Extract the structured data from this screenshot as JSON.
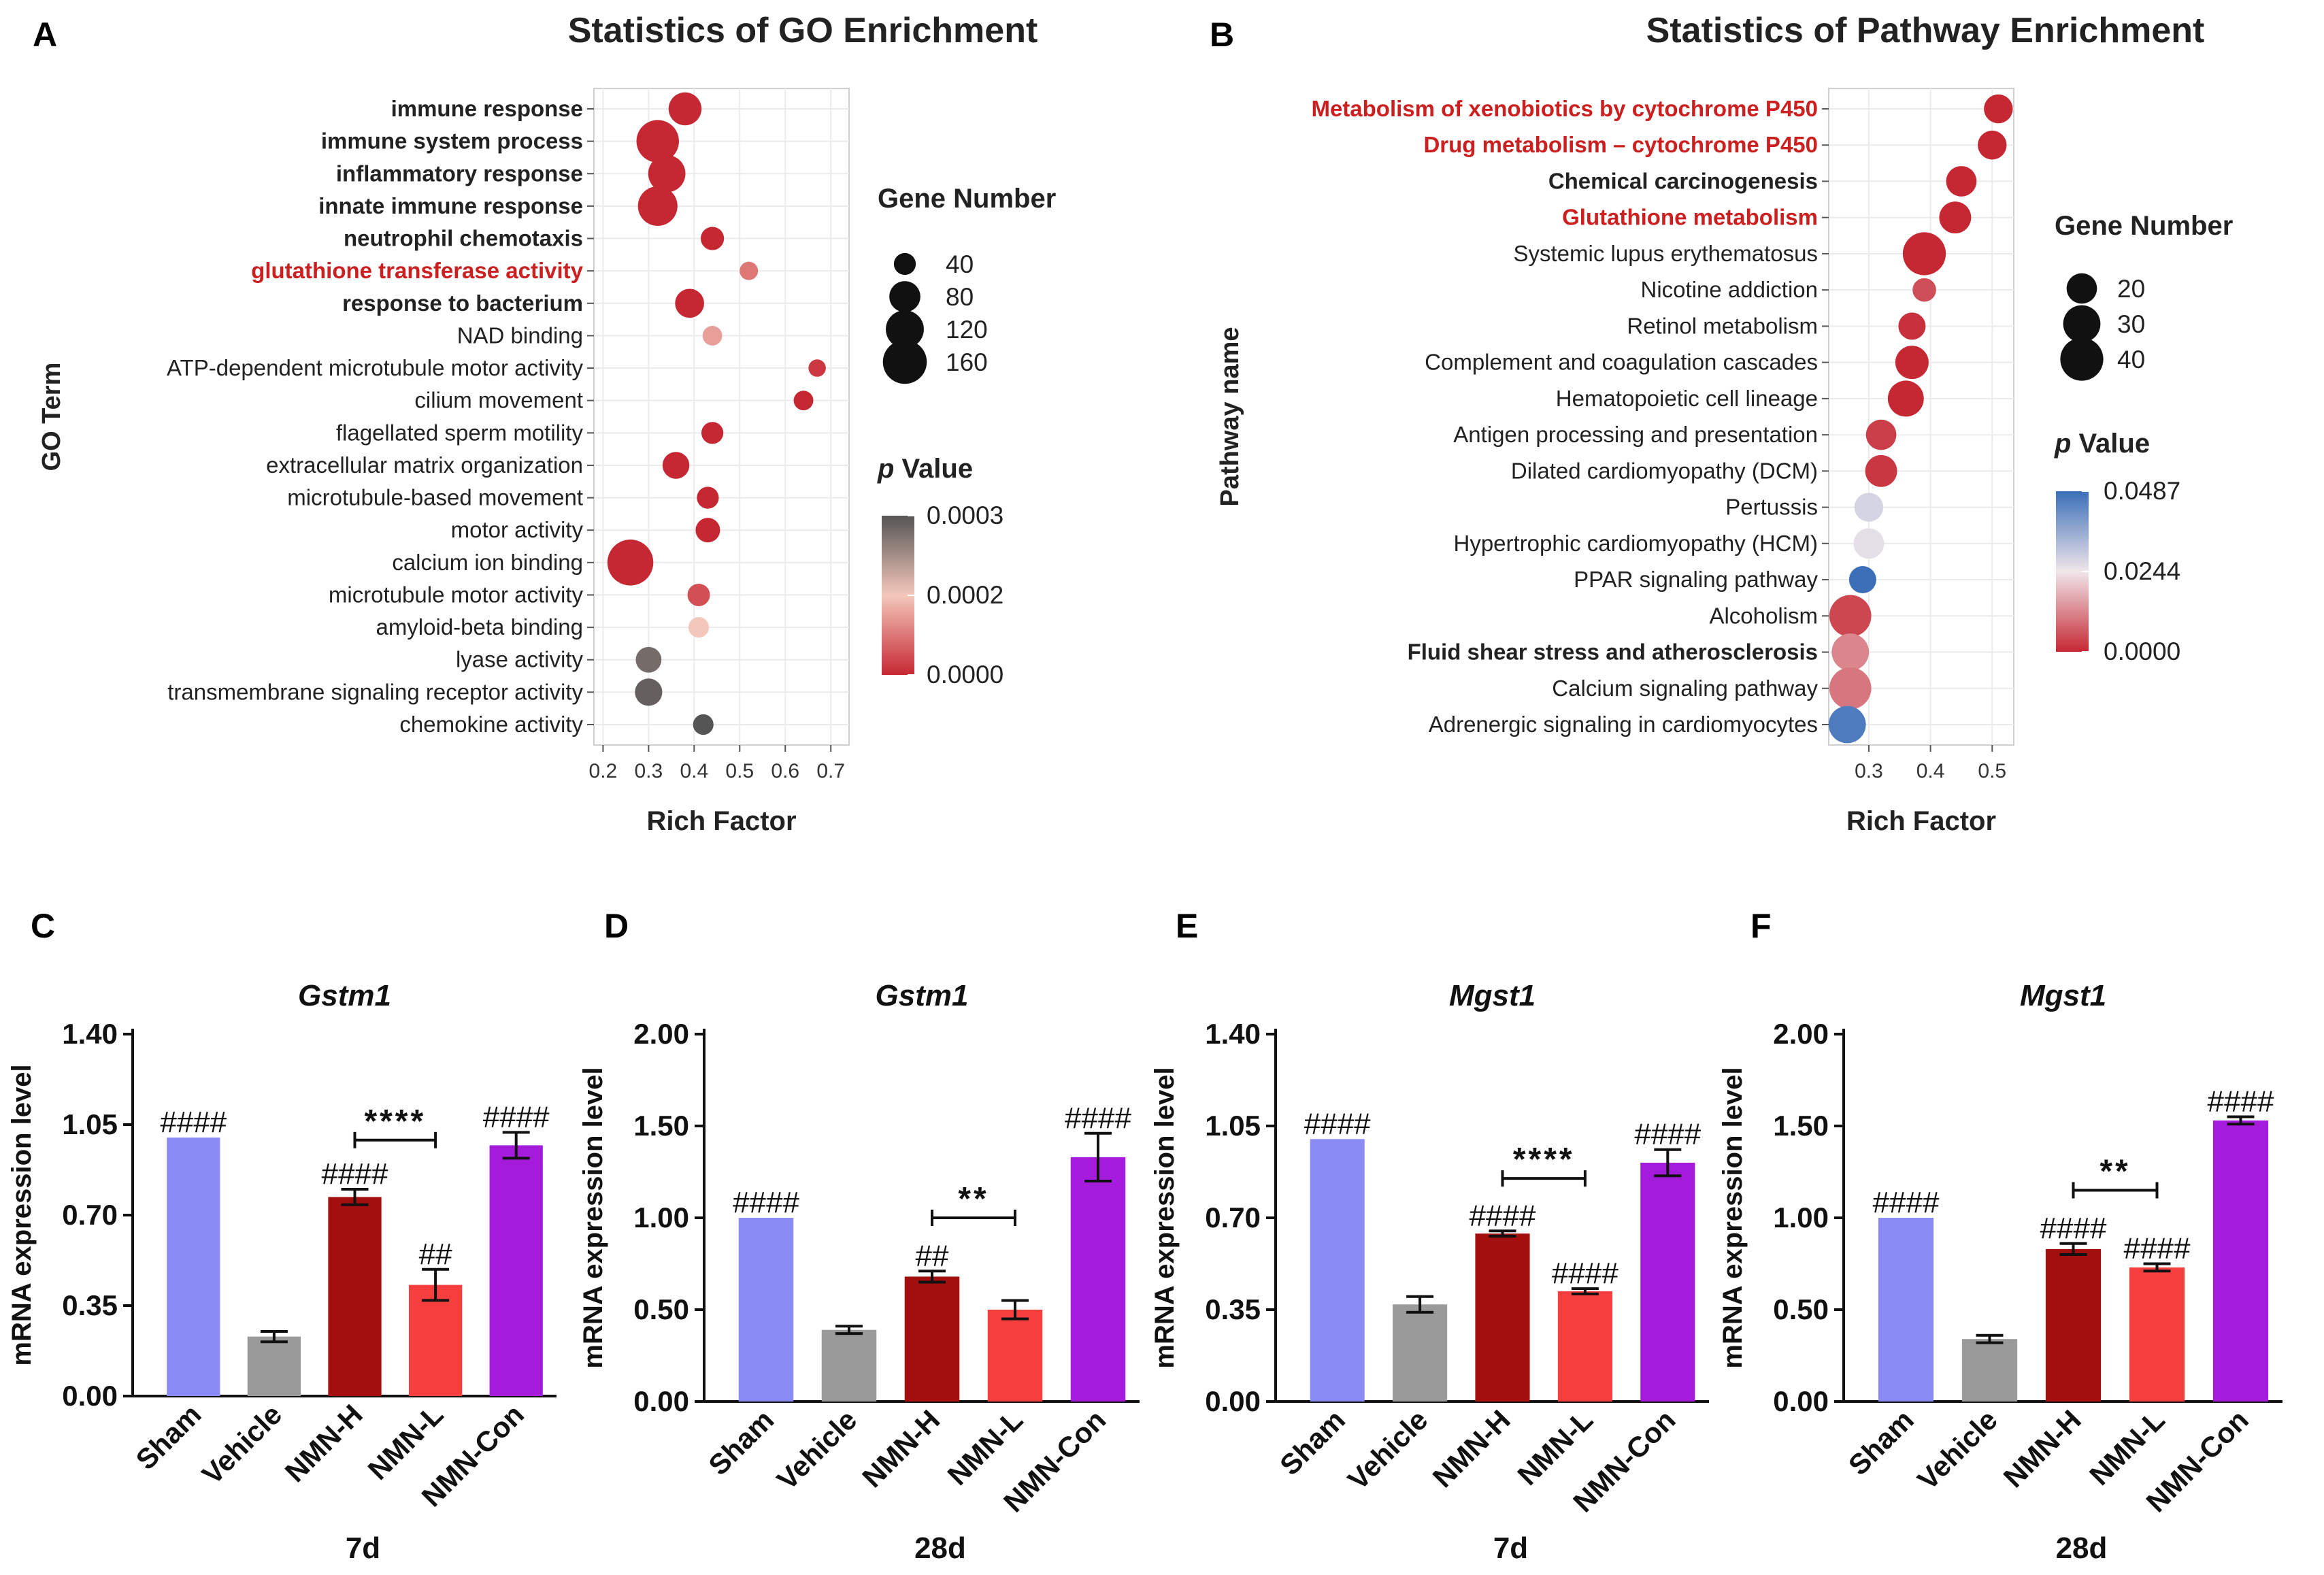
{
  "figure": {
    "panel_labels": [
      "A",
      "B",
      "C",
      "D",
      "E",
      "F"
    ]
  },
  "colors": {
    "red": "#c62833",
    "sham": "#8b8bf5",
    "vehicle": "#9a9a9a",
    "nmn_h": "#a30f0f",
    "nmn_l": "#f53e3e",
    "nmn_con": "#a41bdb",
    "grid_bg": "#ffffff",
    "grid_line": "#ebebeb",
    "highlight_text": "#cc1f1f"
  },
  "chart_data": [
    {
      "id": "A",
      "type": "scatter",
      "title": "Statistics of GO Enrichment",
      "xlabel": "Rich Factor",
      "ylabel": "GO Term",
      "xlim": [
        0.18,
        0.74
      ],
      "xticks": [
        "0.2",
        "0.3",
        "0.4",
        "0.5",
        "0.6",
        "0.7"
      ],
      "size_legend_title": "Gene Number",
      "size_legend": [
        40,
        80,
        120,
        160
      ],
      "color_legend_title_italic": "p",
      "color_legend_title": "Value",
      "color_scale": {
        "min": 0.0,
        "mid": 0.0002,
        "max": 0.0003,
        "colors": [
          "#c62833",
          "#f4c7bb",
          "#555555"
        ]
      },
      "color_ticks": [
        "0.0003",
        "0.0002",
        "0.0000"
      ],
      "terms": [
        {
          "name": "immune response",
          "x": 0.38,
          "count": 90,
          "p": 0.0,
          "bold": true,
          "highlight": false
        },
        {
          "name": "immune system process",
          "x": 0.32,
          "count": 150,
          "p": 0.0,
          "bold": true,
          "highlight": false
        },
        {
          "name": "inflammatory response",
          "x": 0.34,
          "count": 115,
          "p": 0.0,
          "bold": true,
          "highlight": false
        },
        {
          "name": "innate immune response",
          "x": 0.32,
          "count": 130,
          "p": 0.0,
          "bold": true,
          "highlight": false
        },
        {
          "name": "neutrophil chemotaxis",
          "x": 0.44,
          "count": 45,
          "p": 0.0,
          "bold": true,
          "highlight": false
        },
        {
          "name": "glutathione transferase activity",
          "x": 0.52,
          "count": 28,
          "p": 0.0001,
          "bold": true,
          "highlight": true
        },
        {
          "name": "response to bacterium",
          "x": 0.39,
          "count": 70,
          "p": 0.0,
          "bold": true,
          "highlight": false
        },
        {
          "name": "NAD binding",
          "x": 0.44,
          "count": 32,
          "p": 0.00015,
          "bold": false,
          "highlight": false
        },
        {
          "name": "ATP-dependent microtubule motor activity",
          "x": 0.67,
          "count": 25,
          "p": 2e-05,
          "bold": false,
          "highlight": false
        },
        {
          "name": "cilium movement",
          "x": 0.64,
          "count": 32,
          "p": 0.0,
          "bold": false,
          "highlight": false
        },
        {
          "name": "flagellated sperm motility",
          "x": 0.44,
          "count": 40,
          "p": 0.0,
          "bold": false,
          "highlight": false
        },
        {
          "name": "extracellular matrix organization",
          "x": 0.36,
          "count": 60,
          "p": 0.0,
          "bold": false,
          "highlight": false
        },
        {
          "name": "microtubule-based movement",
          "x": 0.43,
          "count": 40,
          "p": 0.0,
          "bold": false,
          "highlight": false
        },
        {
          "name": "motor activity",
          "x": 0.43,
          "count": 50,
          "p": 0.0,
          "bold": false,
          "highlight": false
        },
        {
          "name": "calcium ion binding",
          "x": 0.26,
          "count": 175,
          "p": 0.0,
          "bold": false,
          "highlight": false
        },
        {
          "name": "microtubule motor activity",
          "x": 0.41,
          "count": 42,
          "p": 5e-05,
          "bold": false,
          "highlight": false
        },
        {
          "name": "amyloid-beta binding",
          "x": 0.41,
          "count": 35,
          "p": 0.0002,
          "bold": false,
          "highlight": false
        },
        {
          "name": "lyase activity",
          "x": 0.3,
          "count": 55,
          "p": 0.00028,
          "bold": false,
          "highlight": false
        },
        {
          "name": "transmembrane signaling receptor activity",
          "x": 0.3,
          "count": 62,
          "p": 0.00029,
          "bold": false,
          "highlight": false
        },
        {
          "name": "chemokine activity",
          "x": 0.42,
          "count": 35,
          "p": 0.0003,
          "bold": false,
          "highlight": false
        }
      ]
    },
    {
      "id": "B",
      "type": "scatter",
      "title": "Statistics of Pathway Enrichment",
      "xlabel": "Rich Factor",
      "ylabel": "Pathway name",
      "xlim": [
        0.235,
        0.535
      ],
      "xticks": [
        "0.3",
        "0.4",
        "0.5"
      ],
      "size_legend_title": "Gene Number",
      "size_legend": [
        20,
        30,
        40
      ],
      "color_legend_title_italic": "p",
      "color_legend_title": "Value",
      "color_scale": {
        "min": 0.0,
        "mid": 0.0244,
        "max": 0.0487,
        "colors": [
          "#c62833",
          "#f0e6ea",
          "#3b6fb8"
        ]
      },
      "color_ticks": [
        "0.0487",
        "0.0244",
        "0.0000"
      ],
      "terms": [
        {
          "name": "Metabolism of xenobiotics by cytochrome P450",
          "x": 0.51,
          "count": 18,
          "p": 0.0,
          "bold": true,
          "highlight": true
        },
        {
          "name": "Drug metabolism – cytochrome P450",
          "x": 0.5,
          "count": 18,
          "p": 0.0,
          "bold": true,
          "highlight": true
        },
        {
          "name": "Chemical carcinogenesis",
          "x": 0.45,
          "count": 20,
          "p": 0.0,
          "bold": true,
          "highlight": false
        },
        {
          "name": "Glutathione metabolism",
          "x": 0.44,
          "count": 22,
          "p": 0.0,
          "bold": true,
          "highlight": true
        },
        {
          "name": "Systemic lupus erythematosus",
          "x": 0.39,
          "count": 40,
          "p": 0.0,
          "bold": false,
          "highlight": false
        },
        {
          "name": "Nicotine addiction",
          "x": 0.39,
          "count": 12,
          "p": 0.005,
          "bold": false,
          "highlight": false
        },
        {
          "name": "Retinol metabolism",
          "x": 0.37,
          "count": 16,
          "p": 0.001,
          "bold": false,
          "highlight": false
        },
        {
          "name": "Complement and coagulation cascades",
          "x": 0.37,
          "count": 24,
          "p": 0.0,
          "bold": false,
          "highlight": false
        },
        {
          "name": "Hematopoietic cell lineage",
          "x": 0.36,
          "count": 28,
          "p": 0.0,
          "bold": false,
          "highlight": false
        },
        {
          "name": "Antigen processing and presentation",
          "x": 0.32,
          "count": 20,
          "p": 0.003,
          "bold": false,
          "highlight": false
        },
        {
          "name": "Dilated cardiomyopathy (DCM)",
          "x": 0.32,
          "count": 22,
          "p": 0.002,
          "bold": false,
          "highlight": false
        },
        {
          "name": "Pertussis",
          "x": 0.3,
          "count": 18,
          "p": 0.028,
          "bold": false,
          "highlight": false
        },
        {
          "name": "Hypertrophic cardiomyopathy (HCM)",
          "x": 0.3,
          "count": 20,
          "p": 0.026,
          "bold": false,
          "highlight": false
        },
        {
          "name": "PPAR signaling pathway",
          "x": 0.29,
          "count": 16,
          "p": 0.0487,
          "bold": false,
          "highlight": false
        },
        {
          "name": "Alcoholism",
          "x": 0.27,
          "count": 38,
          "p": 0.004,
          "bold": false,
          "highlight": false
        },
        {
          "name": "Fluid shear stress and atherosclerosis",
          "x": 0.27,
          "count": 30,
          "p": 0.012,
          "bold": true,
          "highlight": false
        },
        {
          "name": "Calcium signaling pathway",
          "x": 0.27,
          "count": 38,
          "p": 0.01,
          "bold": false,
          "highlight": false
        },
        {
          "name": "Adrenergic signaling in cardiomyocytes",
          "x": 0.265,
          "count": 30,
          "p": 0.046,
          "bold": false,
          "highlight": false
        }
      ]
    },
    {
      "id": "C",
      "type": "bar",
      "title": "Gstm1",
      "ylabel": "mRNA expression level",
      "timepoint": "7d",
      "ylim": [
        0,
        1.4
      ],
      "yticks": [
        "0.00",
        "0.35",
        "0.70",
        "1.05",
        "1.40"
      ],
      "categories": [
        "Sham",
        "Vehicle",
        "NMN-H",
        "NMN-L",
        "NMN-Con"
      ],
      "values": [
        1.0,
        0.23,
        0.77,
        0.43,
        0.97
      ],
      "errors": [
        0.0,
        0.02,
        0.03,
        0.06,
        0.05
      ],
      "labels": [
        "####",
        "",
        "####",
        "##",
        "####"
      ],
      "bracket": {
        "from": 2,
        "to": 3,
        "y": 0.99,
        "label": "****"
      }
    },
    {
      "id": "D",
      "type": "bar",
      "title": "Gstm1",
      "ylabel": "mRNA expression level",
      "timepoint": "28d",
      "ylim": [
        0,
        2.0
      ],
      "yticks": [
        "0.00",
        "0.50",
        "1.00",
        "1.50",
        "2.00"
      ],
      "categories": [
        "Sham",
        "Vehicle",
        "NMN-H",
        "NMN-L",
        "NMN-Con"
      ],
      "values": [
        1.0,
        0.39,
        0.68,
        0.5,
        1.33
      ],
      "errors": [
        0.0,
        0.02,
        0.03,
        0.05,
        0.13
      ],
      "labels": [
        "####",
        "",
        "##",
        "",
        "####"
      ],
      "bracket": {
        "from": 2,
        "to": 3,
        "y": 1.0,
        "label": "**"
      }
    },
    {
      "id": "E",
      "type": "bar",
      "title": "Mgst1",
      "ylabel": "mRNA expression level",
      "timepoint": "7d",
      "ylim": [
        0,
        1.4
      ],
      "yticks": [
        "0.00",
        "0.35",
        "0.70",
        "1.05",
        "1.40"
      ],
      "categories": [
        "Sham",
        "Vehicle",
        "NMN-H",
        "NMN-L",
        "NMN-Con"
      ],
      "values": [
        1.0,
        0.37,
        0.64,
        0.42,
        0.91
      ],
      "errors": [
        0.0,
        0.03,
        0.01,
        0.01,
        0.05
      ],
      "labels": [
        "####",
        "",
        "####",
        "####",
        "####"
      ],
      "bracket": {
        "from": 2,
        "to": 3,
        "y": 0.85,
        "label": "****"
      }
    },
    {
      "id": "F",
      "type": "bar",
      "title": "Mgst1",
      "ylabel": "mRNA expression level",
      "timepoint": "28d",
      "ylim": [
        0,
        2.0
      ],
      "yticks": [
        "0.00",
        "0.50",
        "1.00",
        "1.50",
        "2.00"
      ],
      "categories": [
        "Sham",
        "Vehicle",
        "NMN-H",
        "NMN-L",
        "NMN-Con"
      ],
      "values": [
        1.0,
        0.34,
        0.83,
        0.73,
        1.53
      ],
      "errors": [
        0.0,
        0.02,
        0.03,
        0.02,
        0.02
      ],
      "labels": [
        "####",
        "",
        "####",
        "####",
        "####"
      ],
      "bracket": {
        "from": 2,
        "to": 3,
        "y": 1.15,
        "label": "**"
      }
    }
  ]
}
